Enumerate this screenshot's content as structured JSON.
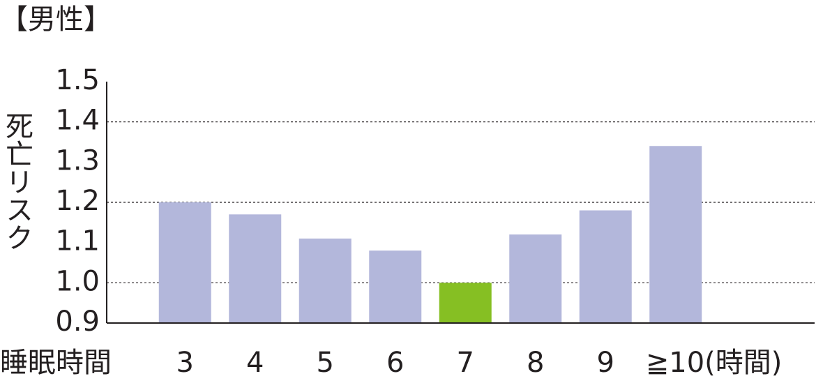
{
  "chart_data": {
    "type": "bar",
    "title": "【男性】",
    "y_label": "死亡リスク",
    "x_label": "睡眠時間",
    "categories": [
      "3",
      "4",
      "5",
      "6",
      "7",
      "8",
      "9",
      "≧10(時間)"
    ],
    "values": [
      1.2,
      1.17,
      1.11,
      1.08,
      1.0,
      1.12,
      1.18,
      1.34
    ],
    "colors": [
      "#b3b7db",
      "#b3b7db",
      "#b3b7db",
      "#b3b7db",
      "#86bf23",
      "#b3b7db",
      "#b3b7db",
      "#b3b7db"
    ],
    "ylim": [
      0.9,
      1.5
    ],
    "yticks": [
      {
        "value": 0.9,
        "label": "0.9"
      },
      {
        "value": 1.0,
        "label": "1.0"
      },
      {
        "value": 1.1,
        "label": "1.1"
      },
      {
        "value": 1.2,
        "label": "1.2"
      },
      {
        "value": 1.3,
        "label": "1.3"
      },
      {
        "value": 1.4,
        "label": "1.4"
      },
      {
        "value": 1.5,
        "label": "1.5"
      }
    ],
    "grid_values": [
      1.0,
      1.2,
      1.4
    ]
  }
}
